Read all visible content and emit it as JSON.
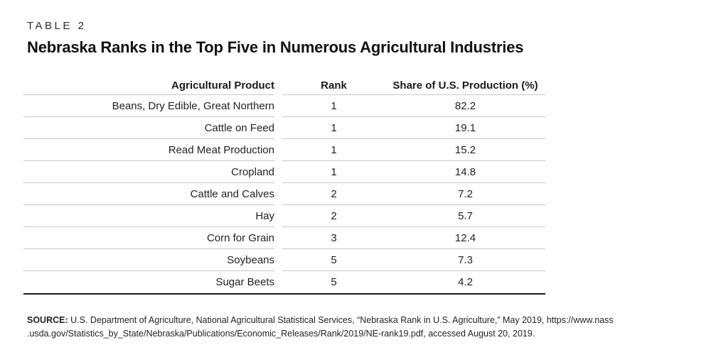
{
  "page": {
    "eyebrow": "TABLE 2",
    "title": "Nebraska Ranks in the Top Five in Numerous Agricultural Industries"
  },
  "table": {
    "columns": [
      "Agricultural Product",
      "Rank",
      "Share of U.S. Production (%)"
    ],
    "rows": [
      {
        "product": "Beans, Dry Edible, Great Northern",
        "rank": "1",
        "share": "82.2"
      },
      {
        "product": "Cattle on Feed",
        "rank": "1",
        "share": "19.1"
      },
      {
        "product": "Read Meat Production",
        "rank": "1",
        "share": "15.2"
      },
      {
        "product": "Cropland",
        "rank": "1",
        "share": "14.8"
      },
      {
        "product": "Cattle and Calves",
        "rank": "2",
        "share": "7.2"
      },
      {
        "product": "Hay",
        "rank": "2",
        "share": "5.7"
      },
      {
        "product": "Corn for Grain",
        "rank": "3",
        "share": "12.4"
      },
      {
        "product": "Soybeans",
        "rank": "5",
        "share": "7.3"
      },
      {
        "product": "Sugar Beets",
        "rank": "5",
        "share": "4.2"
      }
    ]
  },
  "source": {
    "label": "SOURCE:",
    "line1": " U.S. Department of Agriculture, National Agricultural Statistical Services, “Nebraska Rank in U.S. Agriculture,” May 2019, https://www.nass",
    "line2": ".usda.gov/Statistics_by_State/Nebraska/Publications/Economic_Releases/Rank/2019/NE-rank19.pdf, accessed August 20, 2019."
  },
  "colors": {
    "text": "#231f20",
    "row_rule": "#c9c9c9",
    "bottom_rule": "#1a1a1a"
  }
}
